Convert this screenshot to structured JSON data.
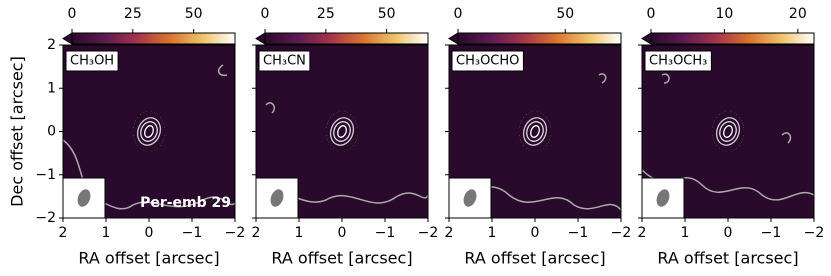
{
  "chart_data": [
    {
      "type": "image",
      "title": "CH₃OH",
      "annotation": "Per-emb 29",
      "xlabel": "RA offset [arcsec]",
      "ylabel": "Dec offset [arcsec]",
      "xlim": [
        2,
        -2
      ],
      "ylim": [
        -2,
        2
      ],
      "xticks": [
        2,
        1,
        0,
        {
          "value": -1,
          "label": "−1"
        },
        {
          "value": -2,
          "label": "−2"
        }
      ],
      "yticks": [
        {
          "value": -2,
          "label": "−2"
        },
        {
          "value": -1,
          "label": "−1"
        },
        0,
        1,
        2
      ],
      "clim": [
        0,
        67
      ],
      "cticks": [
        0,
        25,
        50
      ],
      "source": {
        "x": 0,
        "y": 0
      },
      "colormap": [
        "#2a0a2c",
        "#5c1a52",
        "#a4344c",
        "#d9732f",
        "#eec36a",
        "#ffffff"
      ]
    },
    {
      "type": "image",
      "title": "CH₃CN",
      "xlabel": "RA offset [arcsec]",
      "xlim": [
        2,
        -2
      ],
      "ylim": [
        -2,
        2
      ],
      "xticks": [
        2,
        1,
        0,
        {
          "value": -1,
          "label": "−1"
        },
        {
          "value": -2,
          "label": "−2"
        }
      ],
      "yticks": [
        -2,
        -1,
        0,
        1,
        2
      ],
      "clim": [
        0,
        67
      ],
      "cticks": [
        0,
        25,
        50
      ],
      "source": {
        "x": 0,
        "y": 0
      },
      "colormap": [
        "#2a0a2c",
        "#5c1a52",
        "#a4344c",
        "#d9732f",
        "#eec36a",
        "#ffffff"
      ]
    },
    {
      "type": "image",
      "title": "CH₃OCHO",
      "xlabel": "RA offset [arcsec]",
      "xlim": [
        2,
        -2
      ],
      "ylim": [
        -2,
        2
      ],
      "xticks": [
        2,
        1,
        0,
        {
          "value": -1,
          "label": "−1"
        },
        {
          "value": -2,
          "label": "−2"
        }
      ],
      "yticks": [
        -2,
        -1,
        0,
        1,
        2
      ],
      "clim": [
        0,
        76
      ],
      "cticks": [
        0,
        50
      ],
      "source": {
        "x": 0,
        "y": 0
      },
      "colormap": [
        "#2a0a2c",
        "#5c1a52",
        "#a4344c",
        "#d9732f",
        "#eec36a",
        "#ffffff"
      ]
    },
    {
      "type": "image",
      "title": "CH₃OCH₃",
      "xlabel": "RA offset [arcsec]",
      "xlim": [
        2,
        -2
      ],
      "ylim": [
        -2,
        2
      ],
      "xticks": [
        2,
        1,
        0,
        {
          "value": -1,
          "label": "−1"
        },
        {
          "value": -2,
          "label": "−2"
        }
      ],
      "yticks": [
        -2,
        -1,
        0,
        1,
        2
      ],
      "clim": [
        0,
        22.2
      ],
      "cticks": [
        0,
        10,
        20
      ],
      "source": {
        "x": 0,
        "y": 0
      },
      "colormap": [
        "#2a0a2c",
        "#5c1a52",
        "#a4344c",
        "#d9732f",
        "#eec36a",
        "#ffffff"
      ]
    }
  ]
}
